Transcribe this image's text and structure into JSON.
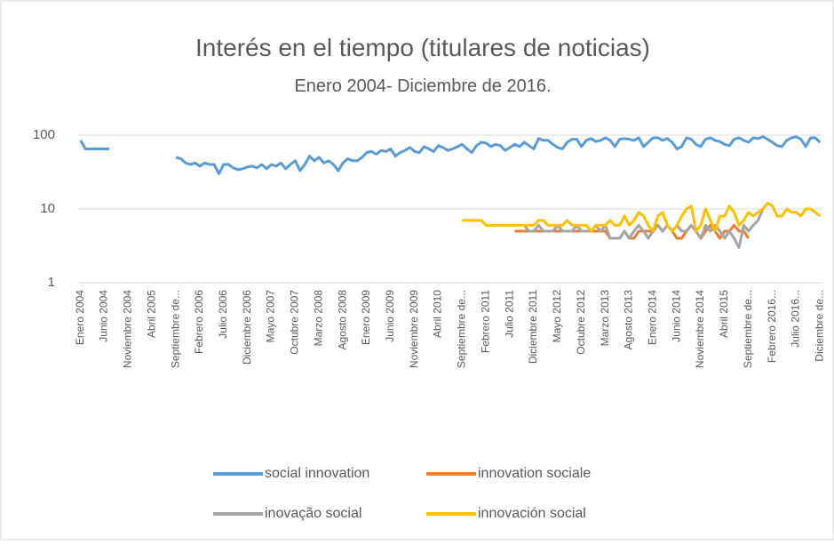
{
  "chart_data": {
    "type": "line",
    "title": "Interés en el tiempo (titulares de noticias)",
    "subtitle": "Enero 2004- Diciembre de 2016.",
    "categories": [
      "Enero 2004",
      null,
      null,
      null,
      null,
      "Junio 2004",
      null,
      null,
      null,
      null,
      "Noviembre 2004",
      null,
      null,
      null,
      null,
      "Abril 2005",
      null,
      null,
      null,
      null,
      "Septiembre de...",
      null,
      null,
      null,
      null,
      "Febrero 2006",
      null,
      null,
      null,
      null,
      "Julio 2006",
      null,
      null,
      null,
      null,
      "Diciembre 2006",
      null,
      null,
      null,
      null,
      "Mayo 2007",
      null,
      null,
      null,
      null,
      "Octubre 2007",
      null,
      null,
      null,
      null,
      "Marzo 2008",
      null,
      null,
      null,
      null,
      "Agosto 2008",
      null,
      null,
      null,
      null,
      "Enero 2009",
      null,
      null,
      null,
      null,
      "Junio 2009",
      null,
      null,
      null,
      null,
      "Noviembre 2009",
      null,
      null,
      null,
      null,
      "Abril 2010",
      null,
      null,
      null,
      null,
      "Septiembre de...",
      null,
      null,
      null,
      null,
      "Febrero 2011",
      null,
      null,
      null,
      null,
      "Julio 2011",
      null,
      null,
      null,
      null,
      "Diciembre 2011",
      null,
      null,
      null,
      null,
      "Mayo 2012",
      null,
      null,
      null,
      null,
      "Octubre 2012",
      null,
      null,
      null,
      null,
      "Marzo 2013",
      null,
      null,
      null,
      null,
      "Agosto 2013",
      null,
      null,
      null,
      null,
      "Enero 2014",
      null,
      null,
      null,
      null,
      "Junio 2014",
      null,
      null,
      null,
      null,
      "Noviembre 2014",
      null,
      null,
      null,
      null,
      "Abril 2015",
      null,
      null,
      null,
      null,
      "Septiembre de...",
      null,
      null,
      null,
      null,
      "Febrero 2016...",
      null,
      null,
      null,
      null,
      "Julio 2016...",
      null,
      null,
      null,
      null,
      "Diciembre de..."
    ],
    "series": [
      {
        "name": "social innovation",
        "color": "#5b9bd5",
        "values": [
          85,
          65,
          65,
          65,
          65,
          65,
          65,
          null,
          null,
          null,
          null,
          null,
          null,
          null,
          null,
          null,
          null,
          null,
          null,
          null,
          50,
          48,
          42,
          40,
          42,
          38,
          42,
          40,
          40,
          30,
          40,
          40,
          36,
          34,
          35,
          37,
          38,
          36,
          40,
          35,
          40,
          38,
          42,
          35,
          40,
          45,
          33,
          40,
          52,
          45,
          50,
          42,
          45,
          40,
          33,
          42,
          48,
          45,
          45,
          50,
          58,
          60,
          55,
          62,
          60,
          65,
          52,
          58,
          62,
          68,
          60,
          58,
          70,
          65,
          60,
          72,
          68,
          62,
          65,
          70,
          75,
          65,
          58,
          72,
          80,
          78,
          70,
          75,
          72,
          62,
          68,
          75,
          70,
          80,
          72,
          65,
          90,
          85,
          85,
          75,
          68,
          65,
          80,
          88,
          88,
          70,
          85,
          90,
          82,
          85,
          92,
          85,
          70,
          88,
          90,
          88,
          85,
          92,
          70,
          80,
          92,
          92,
          85,
          90,
          80,
          65,
          70,
          92,
          88,
          75,
          70,
          88,
          92,
          85,
          82,
          75,
          72,
          88,
          92,
          85,
          80,
          92,
          90,
          95,
          88,
          80,
          72,
          70,
          85,
          92,
          95,
          88,
          70,
          92,
          92,
          80
        ]
      },
      {
        "name": "innovation sociale",
        "color": "#ed7d31",
        "values": [
          null,
          null,
          null,
          null,
          null,
          null,
          null,
          null,
          null,
          null,
          null,
          null,
          null,
          null,
          null,
          null,
          null,
          null,
          null,
          null,
          null,
          null,
          null,
          null,
          null,
          null,
          null,
          null,
          null,
          null,
          null,
          null,
          null,
          null,
          null,
          null,
          null,
          null,
          null,
          null,
          null,
          null,
          null,
          null,
          null,
          null,
          null,
          null,
          null,
          null,
          null,
          null,
          null,
          null,
          null,
          null,
          null,
          null,
          null,
          null,
          null,
          null,
          null,
          null,
          null,
          null,
          null,
          null,
          null,
          null,
          null,
          null,
          null,
          null,
          null,
          null,
          null,
          null,
          null,
          null,
          null,
          null,
          null,
          null,
          null,
          null,
          null,
          null,
          null,
          null,
          null,
          5,
          5,
          5,
          5,
          5,
          5,
          5,
          5,
          5,
          5,
          5,
          5,
          5,
          5,
          5,
          5,
          5,
          5,
          5,
          5,
          4,
          4,
          4,
          5,
          4,
          4,
          5,
          5,
          5,
          5,
          6,
          5,
          6,
          5,
          4,
          4,
          5,
          6,
          5,
          4,
          5,
          6,
          5,
          4,
          5,
          5,
          6,
          5,
          5,
          4,
          null,
          null,
          null,
          null,
          null,
          null,
          null,
          null,
          null,
          null,
          null,
          null,
          null,
          null,
          null
        ]
      },
      {
        "name": "inovação social",
        "color": "#a5a5a5",
        "values": [
          null,
          null,
          null,
          null,
          null,
          null,
          null,
          null,
          null,
          null,
          null,
          null,
          null,
          null,
          null,
          null,
          null,
          null,
          null,
          null,
          null,
          null,
          null,
          null,
          null,
          null,
          null,
          null,
          null,
          null,
          null,
          null,
          null,
          null,
          null,
          null,
          null,
          null,
          null,
          null,
          null,
          null,
          null,
          null,
          null,
          null,
          null,
          null,
          null,
          null,
          null,
          null,
          null,
          null,
          null,
          null,
          null,
          null,
          null,
          null,
          null,
          null,
          null,
          null,
          null,
          null,
          null,
          null,
          null,
          null,
          null,
          null,
          null,
          null,
          null,
          null,
          null,
          null,
          null,
          null,
          null,
          null,
          null,
          null,
          null,
          null,
          null,
          null,
          null,
          null,
          null,
          null,
          null,
          6,
          5,
          5,
          6,
          5,
          5,
          5,
          6,
          5,
          5,
          5,
          6,
          5,
          5,
          5,
          6,
          5,
          6,
          4,
          4,
          4,
          5,
          4,
          5,
          6,
          5,
          4,
          5,
          6,
          5,
          6,
          5,
          6,
          5,
          5,
          6,
          5,
          4,
          6,
          5,
          6,
          5,
          4,
          5,
          4,
          3,
          6,
          5,
          6,
          7,
          10,
          null,
          null,
          null,
          null,
          null,
          null,
          null,
          null,
          null,
          null,
          null,
          null
        ]
      },
      {
        "name": "innovación social",
        "color": "#ffc000",
        "values": [
          null,
          null,
          null,
          null,
          null,
          null,
          null,
          null,
          null,
          null,
          null,
          null,
          null,
          null,
          null,
          null,
          null,
          null,
          null,
          null,
          null,
          null,
          null,
          null,
          null,
          null,
          null,
          null,
          null,
          null,
          null,
          null,
          null,
          null,
          null,
          null,
          null,
          null,
          null,
          null,
          null,
          null,
          null,
          null,
          null,
          null,
          null,
          null,
          null,
          null,
          null,
          null,
          null,
          null,
          null,
          null,
          null,
          null,
          null,
          null,
          null,
          null,
          null,
          null,
          null,
          null,
          null,
          null,
          null,
          null,
          null,
          null,
          null,
          null,
          null,
          null,
          null,
          null,
          null,
          null,
          7,
          7,
          7,
          7,
          7,
          6,
          6,
          6,
          6,
          6,
          6,
          6,
          6,
          6,
          6,
          6,
          7,
          7,
          6,
          6,
          6,
          6,
          7,
          6,
          6,
          6,
          6,
          5,
          6,
          6,
          6,
          7,
          6,
          6,
          8,
          6,
          7,
          9,
          8,
          6,
          5,
          8,
          9,
          6,
          5,
          6,
          8,
          10,
          11,
          5,
          6,
          10,
          7,
          5,
          8,
          8,
          11,
          9,
          6,
          7,
          9,
          8,
          9,
          10,
          12,
          11,
          8,
          8,
          10,
          9,
          9,
          8,
          10,
          10,
          9,
          8
        ]
      }
    ],
    "ylim": [
      1,
      100
    ],
    "yticks": [
      1,
      10,
      100
    ],
    "log_y": true,
    "grid": true,
    "legend": "bottom"
  }
}
